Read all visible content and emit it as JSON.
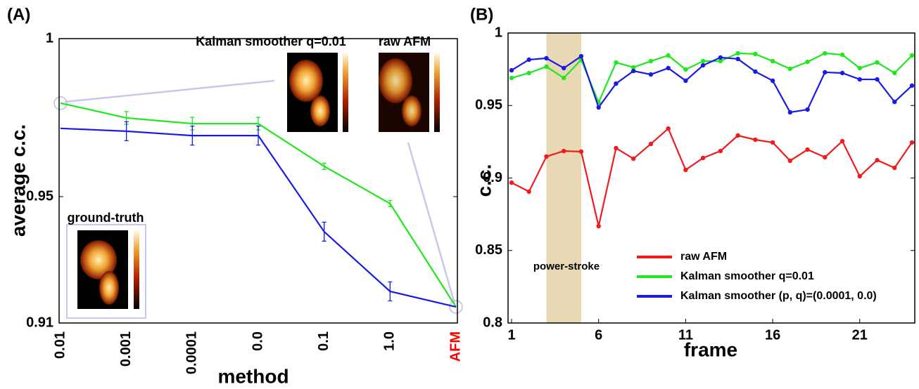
{
  "chart_data": [
    {
      "type": "line",
      "panel_label": "(A)",
      "xlabel": "method",
      "ylabel": "average c.c.",
      "categories": [
        "0.01",
        "0.001",
        "0.0001",
        "0.0",
        "0.1",
        "1.0",
        "AFM"
      ],
      "category_label_colors": [
        "#000000",
        "#000000",
        "#000000",
        "#000000",
        "#000000",
        "#000000",
        "#ff0000"
      ],
      "ylim": [
        0.91,
        1
      ],
      "yticks": [
        0.91,
        0.95,
        1
      ],
      "annotations": [
        "Kalman smoother q=0.01",
        "raw AFM",
        "ground-truth"
      ],
      "series": [
        {
          "color": "#1ee81e",
          "values": [
            0.9796,
            0.9749,
            0.9731,
            0.9731,
            0.9596,
            0.9478,
            0.9151
          ],
          "errors": [
            null,
            0.002,
            0.002,
            0.002,
            0.001,
            0.001,
            null
          ]
        },
        {
          "color": "#1a1ae6",
          "values": [
            0.9716,
            0.9707,
            0.9693,
            0.9693,
            0.9389,
            0.92,
            0.9151
          ],
          "errors": [
            null,
            0.003,
            0.003,
            0.003,
            0.003,
            0.003,
            null
          ]
        }
      ]
    },
    {
      "type": "line",
      "panel_label": "(B)",
      "xlabel": "frame",
      "ylabel": "c.c.",
      "x": [
        1,
        2,
        3,
        4,
        5,
        6,
        7,
        8,
        9,
        10,
        11,
        12,
        13,
        14,
        15,
        16,
        17,
        18,
        19,
        20,
        21,
        22,
        23,
        24
      ],
      "xlim": [
        1,
        24
      ],
      "xticks": [
        1,
        6,
        11,
        16,
        21
      ],
      "ylim": [
        0.8,
        1
      ],
      "yticks": [
        0.8,
        0.85,
        0.9,
        0.95,
        1
      ],
      "markers": true,
      "legend": "lower right",
      "span": {
        "x": [
          3,
          5
        ],
        "label": "power-stroke",
        "color": "#e8d8b4"
      },
      "series": [
        {
          "name": "raw AFM",
          "color": "#ee1c1c",
          "values": [
            0.8968,
            0.8906,
            0.9148,
            0.9186,
            0.9182,
            0.8668,
            0.9206,
            0.9133,
            0.9235,
            0.9341,
            0.9056,
            0.9138,
            0.9186,
            0.9293,
            0.9264,
            0.9245,
            0.9119,
            0.9196,
            0.9143,
            0.9254,
            0.9012,
            0.9123,
            0.907,
            0.9245
          ]
        },
        {
          "name": "Kalman smoother q=0.01",
          "color": "#1ee81e",
          "values": [
            0.969,
            0.9724,
            0.9768,
            0.969,
            0.9816,
            0.9521,
            0.9797,
            0.9763,
            0.9806,
            0.9845,
            0.9748,
            0.9806,
            0.9806,
            0.986,
            0.9855,
            0.9806,
            0.9753,
            0.9801,
            0.986,
            0.985,
            0.9758,
            0.9797,
            0.9724,
            0.9845
          ]
        },
        {
          "name": "Kalman smoother (p, q)=(0.0001, 0.0)",
          "color": "#1a1ae6",
          "values": [
            0.9743,
            0.9816,
            0.9826,
            0.9758,
            0.984,
            0.9487,
            0.9651,
            0.9738,
            0.9714,
            0.9758,
            0.9671,
            0.9777,
            0.9831,
            0.9821,
            0.9734,
            0.9671,
            0.9453,
            0.9472,
            0.9729,
            0.9724,
            0.968,
            0.968,
            0.9525,
            0.9637
          ]
        }
      ]
    }
  ]
}
